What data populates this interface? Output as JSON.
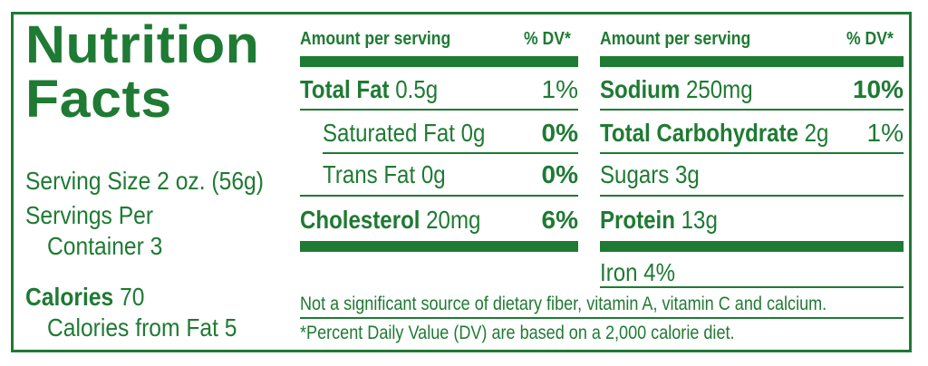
{
  "title": {
    "line1": "Nutrition",
    "line2": "Facts"
  },
  "serving": {
    "size": "Serving Size 2 oz. (56g)",
    "per_line1": "Servings Per",
    "per_line2": "Container 3"
  },
  "calories": {
    "label": "Calories",
    "value": "70",
    "from_fat": "Calories from Fat 5"
  },
  "left_table": {
    "header_amount": "Amount per serving",
    "header_dv": "% DV*",
    "rows": [
      {
        "name": "Total Fat",
        "amount": "0.5g",
        "dv": "1%"
      },
      {
        "name": "Saturated Fat 0g",
        "amount": "",
        "dv": "0%"
      },
      {
        "name": "Trans Fat 0g",
        "amount": "",
        "dv": "0%"
      },
      {
        "name": "Cholesterol",
        "amount": "20mg",
        "dv": "6%"
      }
    ]
  },
  "right_table": {
    "header_amount": "Amount per serving",
    "header_dv": "% DV*",
    "rows": [
      {
        "name": "Sodium",
        "amount": "250mg",
        "dv": "10%"
      },
      {
        "name": "Total Carbohydrate",
        "amount": "2g",
        "dv": "1%"
      },
      {
        "name": "Sugars 3g",
        "amount": "",
        "dv": ""
      },
      {
        "name": "Protein",
        "amount": "13g",
        "dv": ""
      }
    ],
    "iron": "Iron 4%"
  },
  "footnotes": {
    "not_significant": "Not a significant source of dietary fiber, vitamin A, vitamin C and calcium.",
    "dv_note": "*Percent Daily Value (DV) are based on a 2,000 calorie diet."
  },
  "colors": {
    "accent": "#1f7a33",
    "background": "#ffffff"
  }
}
